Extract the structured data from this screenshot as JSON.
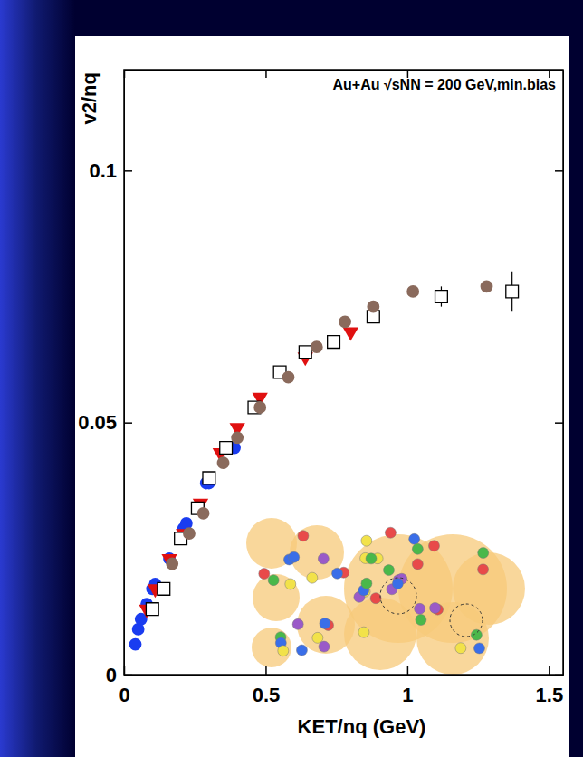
{
  "chart_data": {
    "type": "scatter",
    "title": "Au+Au √sNN = 200 GeV,min.bias",
    "x_label": "KET/nq (GeV)",
    "y_label": "v2/nq",
    "xlim": [
      0,
      1.55
    ],
    "ylim": [
      0,
      0.12
    ],
    "xticks": [
      0,
      0.5,
      1,
      1.5
    ],
    "yticks": [
      0,
      0.05,
      0.1
    ],
    "grid": false,
    "series": [
      {
        "color": "#1a3cf0",
        "marker": "circle",
        "x": [
          0.04,
          0.05,
          0.06,
          0.08,
          0.1,
          0.11,
          0.16,
          0.21,
          0.22,
          0.29,
          0.3,
          0.39
        ],
        "values": [
          0.006,
          0.009,
          0.011,
          0.014,
          0.017,
          0.018,
          0.023,
          0.029,
          0.03,
          0.038,
          0.038,
          0.045
        ]
      },
      {
        "color": "#e01010",
        "marker": "triangle-down",
        "x": [
          0.08,
          0.11,
          0.16,
          0.21,
          0.27,
          0.34,
          0.4,
          0.48,
          0.64,
          0.8
        ],
        "values": [
          0.013,
          0.017,
          0.023,
          0.028,
          0.034,
          0.044,
          0.049,
          0.055,
          0.063,
          0.068
        ]
      },
      {
        "color": "#000000",
        "marker": "open-square",
        "x": [
          0.1,
          0.14,
          0.2,
          0.26,
          0.3,
          0.36,
          0.46,
          0.55,
          0.64,
          0.74,
          0.88,
          1.12,
          1.37
        ],
        "values": [
          0.013,
          0.017,
          0.027,
          0.033,
          0.039,
          0.045,
          0.053,
          0.06,
          0.064,
          0.066,
          0.071,
          0.075,
          0.076
        ],
        "errors": [
          0.001,
          0.001,
          0.001,
          0.001,
          0.001,
          0.001,
          0.001,
          0.001,
          0.001,
          0.001,
          0.001,
          0.002,
          0.004
        ]
      },
      {
        "color": "#8a6a5c",
        "marker": "circle",
        "x": [
          0.17,
          0.23,
          0.28,
          0.35,
          0.4,
          0.48,
          0.58,
          0.68,
          0.78,
          0.88,
          1.02,
          1.28
        ],
        "values": [
          0.022,
          0.028,
          0.032,
          0.042,
          0.047,
          0.053,
          0.059,
          0.065,
          0.07,
          0.073,
          0.076,
          0.077
        ]
      }
    ]
  }
}
